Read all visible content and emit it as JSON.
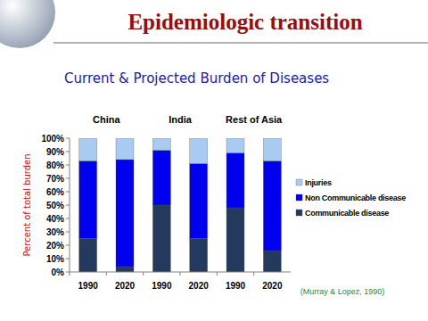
{
  "chart_data": {
    "type": "bar",
    "stacked": true,
    "title": "Epidemiologic transition",
    "subtitle": "Current & Projected Burden of Diseases",
    "y_label": "Percent of total burden",
    "groups": [
      "China",
      "India",
      "Rest of Asia"
    ],
    "categories": [
      "1990",
      "2020",
      "1990",
      "2020",
      "1990",
      "2020"
    ],
    "series": [
      {
        "name": "Communicable disease",
        "color": "#233a5e",
        "values": [
          25,
          4,
          50,
          25,
          48,
          16
        ]
      },
      {
        "name": "Non Communicable disease",
        "color": "#0000ee",
        "values": [
          58,
          80,
          41,
          56,
          41,
          67
        ]
      },
      {
        "name": "Injuries",
        "color": "#a9cbf2",
        "values": [
          17,
          16,
          9,
          19,
          11,
          17
        ]
      }
    ],
    "ylim": [
      0,
      100
    ],
    "yticks": [
      {
        "value": 0,
        "label": "0%"
      },
      {
        "value": 10,
        "label": "10%"
      },
      {
        "value": 20,
        "label": "20%"
      },
      {
        "value": 30,
        "label": "30%"
      },
      {
        "value": 40,
        "label": "40%"
      },
      {
        "value": 50,
        "label": "50%"
      },
      {
        "value": 60,
        "label": "60%"
      },
      {
        "value": 70,
        "label": "70%"
      },
      {
        "value": 80,
        "label": "80%"
      },
      {
        "value": 90,
        "label": "90%"
      },
      {
        "value": 100,
        "label": "100%"
      }
    ],
    "grid": false,
    "legend": "right",
    "source": "(Murray & Lopez, 1990)"
  }
}
